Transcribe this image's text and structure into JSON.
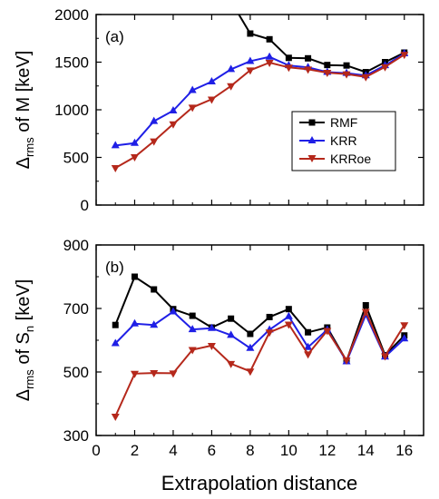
{
  "chart_data": [
    {
      "type": "line",
      "panel_label": "(a)",
      "ylabel_main": "Δ",
      "ylabel_sub": "rms",
      "ylabel_rest": " of M [keV]",
      "xlim": [
        0,
        17
      ],
      "ylim": [
        0,
        2000
      ],
      "xticks": [
        0,
        2,
        4,
        6,
        8,
        10,
        12,
        14,
        16
      ],
      "yticks": [
        0,
        500,
        1000,
        1500,
        2000
      ],
      "show_xtick_labels": false,
      "legend_placement": "center-right",
      "series": [
        {
          "name": "RMF",
          "color": "#000000",
          "marker": "square",
          "x": [
            7,
            8,
            9,
            10,
            11,
            12,
            13,
            14,
            15,
            16
          ],
          "y": [
            2140,
            1800,
            1740,
            1545,
            1540,
            1470,
            1465,
            1395,
            1500,
            1600
          ]
        },
        {
          "name": "KRR",
          "color": "#1f1fe6",
          "marker": "triangle-up",
          "x": [
            1,
            2,
            3,
            4,
            5,
            6,
            7,
            8,
            9,
            10,
            11,
            12,
            13,
            14,
            15,
            16
          ],
          "y": [
            625,
            650,
            880,
            990,
            1205,
            1295,
            1425,
            1510,
            1555,
            1465,
            1445,
            1395,
            1385,
            1360,
            1465,
            1590
          ]
        },
        {
          "name": "KRRoe",
          "color": "#b5281b",
          "marker": "triangle-down",
          "x": [
            1,
            2,
            3,
            4,
            5,
            6,
            7,
            8,
            9,
            10,
            11,
            12,
            13,
            14,
            15,
            16
          ],
          "y": [
            390,
            505,
            670,
            850,
            1025,
            1110,
            1250,
            1415,
            1495,
            1445,
            1425,
            1390,
            1375,
            1345,
            1450,
            1580
          ]
        }
      ]
    },
    {
      "type": "line",
      "panel_label": "(b)",
      "ylabel_main": "Δ",
      "ylabel_sub": "rms",
      "ylabel_mid": " of S",
      "ylabel_sub2": "n",
      "ylabel_rest": " [keV]",
      "xlabel": "Extrapolation distance",
      "xlim": [
        0,
        17
      ],
      "ylim": [
        300,
        900
      ],
      "xticks": [
        0,
        2,
        4,
        6,
        8,
        10,
        12,
        14,
        16
      ],
      "yticks": [
        300,
        500,
        700,
        900
      ],
      "show_xtick_labels": true,
      "series": [
        {
          "name": "RMF",
          "color": "#000000",
          "marker": "square",
          "x": [
            1,
            2,
            3,
            4,
            5,
            6,
            7,
            8,
            9,
            10,
            11,
            12,
            13,
            14,
            15,
            16
          ],
          "y": [
            648,
            800,
            760,
            698,
            677,
            640,
            668,
            620,
            673,
            698,
            625,
            640,
            535,
            710,
            553,
            615
          ]
        },
        {
          "name": "KRR",
          "color": "#1f1fe6",
          "marker": "triangle-up",
          "x": [
            1,
            2,
            3,
            4,
            5,
            6,
            7,
            8,
            9,
            10,
            11,
            12,
            13,
            14,
            15,
            16
          ],
          "y": [
            590,
            652,
            648,
            690,
            634,
            638,
            616,
            575,
            633,
            675,
            578,
            633,
            533,
            680,
            548,
            605
          ]
        },
        {
          "name": "KRRoe",
          "color": "#b5281b",
          "marker": "triangle-down",
          "x": [
            1,
            2,
            3,
            4,
            5,
            6,
            7,
            8,
            9,
            10,
            11,
            12,
            13,
            14,
            15,
            16
          ],
          "y": [
            360,
            495,
            497,
            496,
            570,
            583,
            526,
            502,
            625,
            650,
            556,
            630,
            537,
            690,
            550,
            648
          ]
        }
      ]
    }
  ]
}
